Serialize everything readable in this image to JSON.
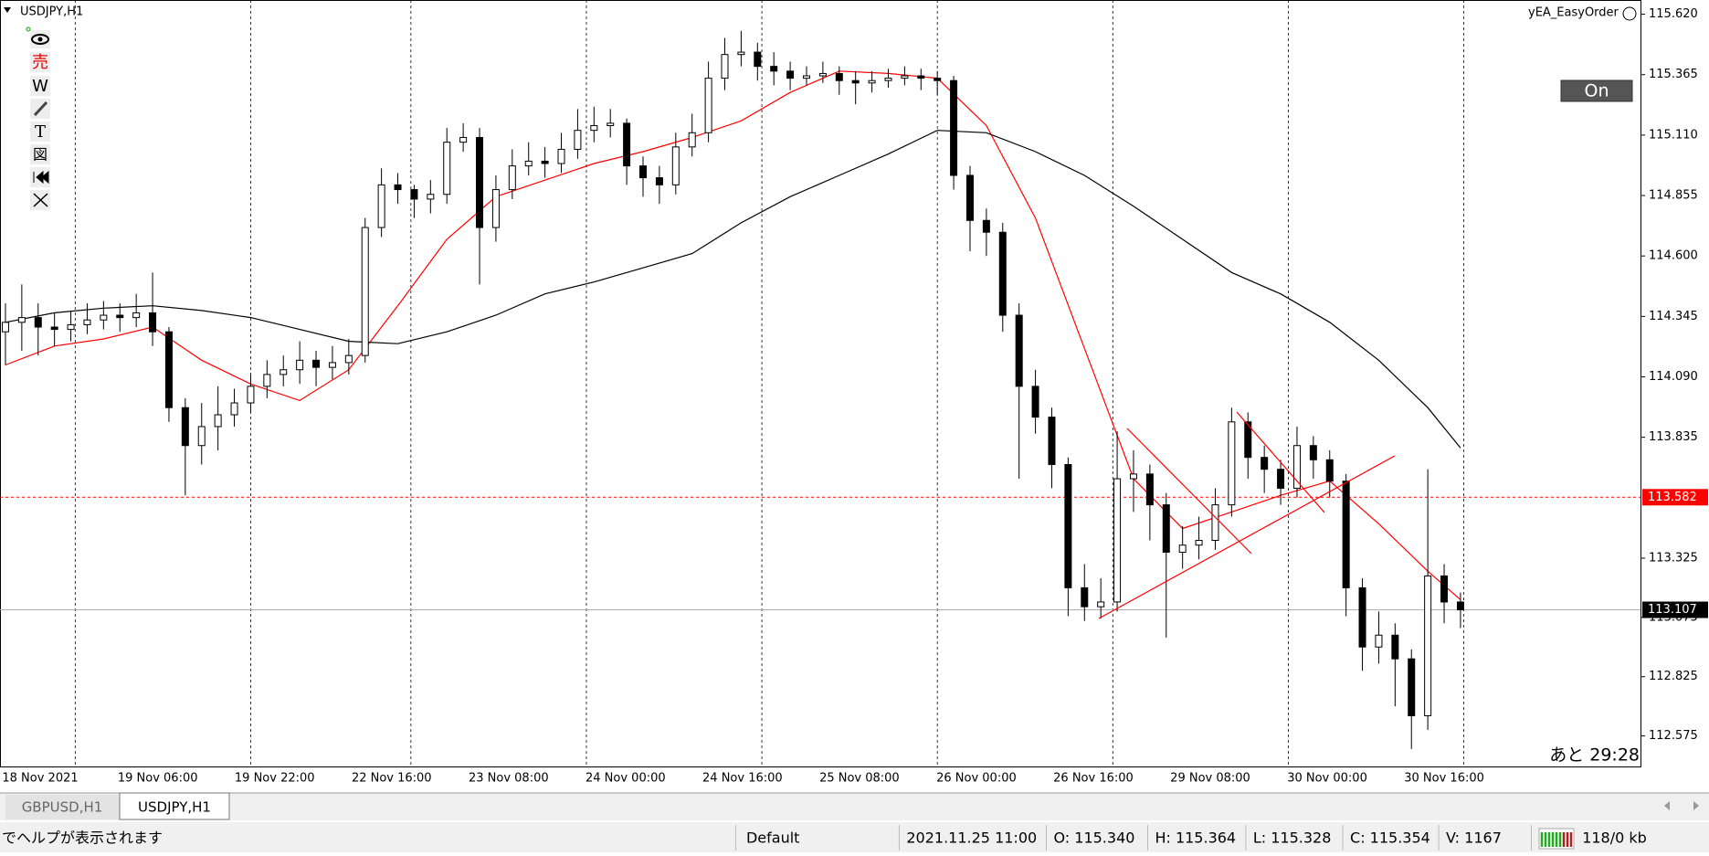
{
  "chart_data": {
    "type": "candlestick",
    "title": "USDJPY,H1",
    "ylim": [
      112.446,
      115.68
    ],
    "yticks": [
      {
        "value": 115.62,
        "label": "115.620"
      },
      115.365,
      {
        "value": 115.11,
        "label": "115.110"
      },
      114.855,
      {
        "value": 114.6,
        "label": "114.600"
      },
      114.345,
      {
        "value": 114.09,
        "label": "114.090"
      },
      113.835,
      113.325,
      113.075,
      112.825,
      112.575
    ],
    "x_labels": [
      "18 Nov 2021",
      "19 Nov 06:00",
      "19 Nov 22:00",
      "22 Nov 16:00",
      "23 Nov 08:00",
      "24 Nov 00:00",
      "24 Nov 16:00",
      "25 Nov 08:00",
      "26 Nov 00:00",
      "26 Nov 16:00",
      "29 Nov 08:00",
      "30 Nov 00:00",
      "30 Nov 16:00"
    ],
    "up_color": "#ffffff",
    "down_color": "#000000",
    "open": [
      114.28,
      114.32,
      114.34,
      114.3,
      114.29,
      114.31,
      114.33,
      114.35,
      114.34,
      114.36,
      114.28,
      113.96,
      113.8,
      113.88,
      113.93,
      113.98,
      114.05,
      114.1,
      114.12,
      114.16,
      114.13,
      114.15,
      114.18,
      114.72,
      114.9,
      114.88,
      114.84,
      114.86,
      115.08,
      115.1,
      114.72,
      114.88,
      114.98,
      115.0,
      114.99,
      115.05,
      115.13,
      115.15,
      115.16,
      114.98,
      114.93,
      114.9,
      115.06,
      115.12,
      115.35,
      115.45,
      115.46,
      115.4,
      115.38,
      115.35,
      115.36,
      115.37,
      115.34,
      115.33,
      115.34,
      115.35,
      115.36,
      115.35,
      115.34,
      114.94,
      114.75,
      114.7,
      114.35,
      114.05,
      113.92,
      113.72,
      113.2,
      113.12,
      113.14,
      113.66,
      113.68,
      113.55,
      113.35,
      113.38,
      113.4,
      113.55,
      113.9,
      113.75,
      113.7,
      113.62,
      113.8,
      113.74,
      113.65,
      113.2,
      112.95,
      113.0,
      112.9,
      112.66,
      113.25,
      113.14
    ],
    "high": [
      114.4,
      114.48,
      114.4,
      114.36,
      114.37,
      114.4,
      114.41,
      114.4,
      114.44,
      114.53,
      114.3,
      114.0,
      113.98,
      114.05,
      114.04,
      114.1,
      114.16,
      114.18,
      114.24,
      114.2,
      114.22,
      114.25,
      114.76,
      114.97,
      114.95,
      114.9,
      114.92,
      115.14,
      115.16,
      115.14,
      114.94,
      115.05,
      115.08,
      115.06,
      115.12,
      115.22,
      115.23,
      115.22,
      115.18,
      115.02,
      114.98,
      115.12,
      115.2,
      115.42,
      115.52,
      115.55,
      115.5,
      115.46,
      115.42,
      115.4,
      115.42,
      115.4,
      115.38,
      115.38,
      115.39,
      115.4,
      115.39,
      115.38,
      115.36,
      114.98,
      114.8,
      114.74,
      114.4,
      114.12,
      113.96,
      113.75,
      113.3,
      113.24,
      113.86,
      113.78,
      113.72,
      113.6,
      113.46,
      113.5,
      113.62,
      113.96,
      113.94,
      113.8,
      113.74,
      113.88,
      113.84,
      113.78,
      113.68,
      113.24,
      113.1,
      113.05,
      112.94,
      113.7,
      113.3,
      113.18
    ],
    "low": [
      114.14,
      114.2,
      114.18,
      114.22,
      114.24,
      114.27,
      114.29,
      114.28,
      114.3,
      114.22,
      113.9,
      113.59,
      113.72,
      113.78,
      113.88,
      113.94,
      114.0,
      114.05,
      114.06,
      114.05,
      114.08,
      114.1,
      114.15,
      114.68,
      114.82,
      114.76,
      114.78,
      114.82,
      115.04,
      114.48,
      114.66,
      114.84,
      114.94,
      114.93,
      114.95,
      115.01,
      115.08,
      115.1,
      114.9,
      114.85,
      114.82,
      114.86,
      115.02,
      115.08,
      115.3,
      115.4,
      115.34,
      115.32,
      115.3,
      115.32,
      115.33,
      115.28,
      115.24,
      115.29,
      115.31,
      115.32,
      115.3,
      115.28,
      114.88,
      114.62,
      114.6,
      114.28,
      113.66,
      113.85,
      113.62,
      113.08,
      113.06,
      113.07,
      113.1,
      113.52,
      113.4,
      112.99,
      113.28,
      113.32,
      113.36,
      113.5,
      113.66,
      113.6,
      113.55,
      113.58,
      113.66,
      113.58,
      113.08,
      112.85,
      112.88,
      112.7,
      112.52,
      112.6,
      113.05,
      113.03
    ],
    "close": [
      114.32,
      114.34,
      114.3,
      114.29,
      114.31,
      114.33,
      114.35,
      114.34,
      114.36,
      114.28,
      113.96,
      113.8,
      113.88,
      113.93,
      113.98,
      114.05,
      114.1,
      114.12,
      114.16,
      114.13,
      114.15,
      114.18,
      114.72,
      114.9,
      114.88,
      114.84,
      114.86,
      115.08,
      115.1,
      114.72,
      114.88,
      114.98,
      115.0,
      114.99,
      115.05,
      115.13,
      115.15,
      115.16,
      114.98,
      114.93,
      114.9,
      115.06,
      115.12,
      115.35,
      115.45,
      115.46,
      115.4,
      115.38,
      115.35,
      115.36,
      115.37,
      115.34,
      115.33,
      115.34,
      115.35,
      115.36,
      115.35,
      115.34,
      114.94,
      114.75,
      114.7,
      114.35,
      114.05,
      113.92,
      113.72,
      113.2,
      113.12,
      113.14,
      113.66,
      113.68,
      113.55,
      113.35,
      113.38,
      113.4,
      113.55,
      113.9,
      113.75,
      113.7,
      113.62,
      113.8,
      113.74,
      113.65,
      113.2,
      112.95,
      113.0,
      112.9,
      112.66,
      113.25,
      113.14,
      113.107
    ],
    "ma_x": [
      0,
      3,
      6,
      9,
      12,
      15,
      18,
      21,
      24,
      27,
      30,
      33,
      36,
      39,
      42,
      45,
      48,
      51,
      54,
      57,
      60,
      63,
      66,
      69,
      72,
      75,
      78,
      81,
      84,
      87,
      89
    ],
    "overlays": [
      {
        "color": "#ff0000",
        "values": [
          114.14,
          114.22,
          114.25,
          114.3,
          114.16,
          114.06,
          113.99,
          114.12,
          114.39,
          114.67,
          114.85,
          114.92,
          114.99,
          115.04,
          115.1,
          115.17,
          115.29,
          115.38,
          115.37,
          115.35,
          115.15,
          114.76,
          114.21,
          113.66,
          113.45,
          113.52,
          113.59,
          113.65,
          113.47,
          113.27,
          113.15
        ]
      },
      {
        "color": "#000000",
        "values": [
          114.32,
          114.36,
          114.38,
          114.39,
          114.37,
          114.34,
          114.29,
          114.24,
          114.23,
          114.28,
          114.35,
          114.44,
          114.49,
          114.55,
          114.61,
          114.74,
          114.85,
          114.94,
          115.03,
          115.13,
          115.12,
          115.04,
          114.94,
          114.81,
          114.67,
          114.53,
          114.44,
          114.32,
          114.16,
          113.96,
          113.79
        ]
      }
    ],
    "price_lines": [
      {
        "value": 113.582,
        "color": "#ff0000"
      },
      {
        "value": 113.107,
        "color": "#000000"
      }
    ]
  },
  "ea_label": "yEA_EasyOrder",
  "ea_button": "On",
  "countdown": "あと 29:28",
  "toolbar": [
    "売",
    "W",
    "T",
    "図"
  ],
  "tabs": [
    "GBPUSD,H1",
    "USDJPY,H1"
  ],
  "status": [
    "でヘルプが表示されます",
    "Default",
    "2021.11.25 11:00",
    "O: 115.340",
    "H: 115.364",
    "L: 115.328",
    "C: 115.354",
    "V: 1167",
    "118/0 kb"
  ]
}
